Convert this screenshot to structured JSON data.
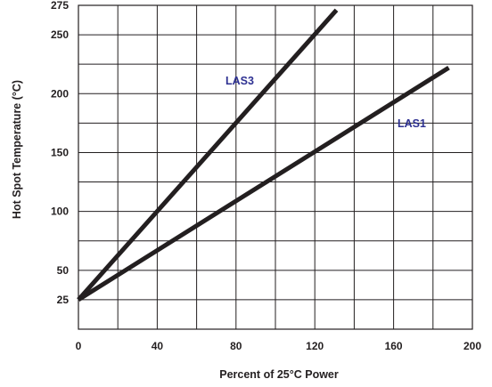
{
  "chart_data": {
    "type": "line",
    "xlabel": "Percent of 25°C Power",
    "ylabel": "Hot Spot Temperature (°C)",
    "xlim": [
      0,
      200
    ],
    "ylim": [
      0,
      275
    ],
    "x_ticks": [
      0,
      40,
      80,
      120,
      160,
      200
    ],
    "y_ticks": [
      25,
      50,
      100,
      150,
      200,
      250,
      275
    ],
    "grid_x": [
      0,
      20,
      40,
      60,
      80,
      100,
      120,
      140,
      160,
      180,
      200
    ],
    "grid_y": [
      0,
      25,
      50,
      75,
      100,
      125,
      150,
      175,
      200,
      225,
      250,
      275
    ],
    "grid": true,
    "line_color": "#231f20",
    "label_color": "#2e3192",
    "series": [
      {
        "name": "LAS3",
        "x": [
          0,
          131
        ],
        "y": [
          25,
          271
        ]
      },
      {
        "name": "LAS1",
        "x": [
          0,
          188
        ],
        "y": [
          25,
          222
        ]
      }
    ]
  }
}
